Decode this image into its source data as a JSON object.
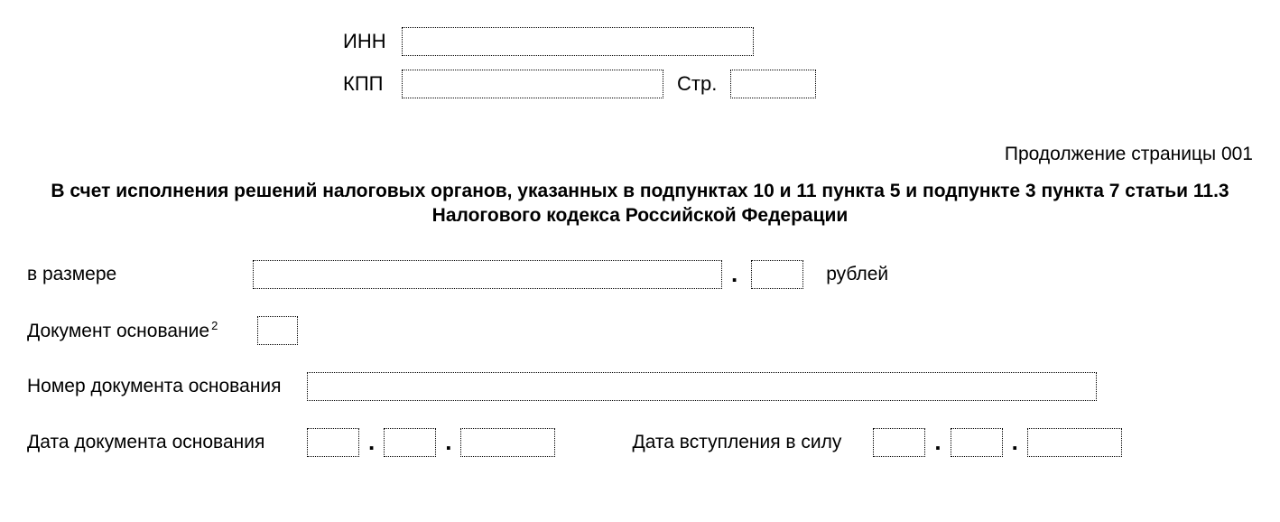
{
  "header": {
    "inn_label": "ИНН",
    "inn_value": "",
    "kpp_label": "КПП",
    "kpp_value": "",
    "page_label": "Стр.",
    "page_value": ""
  },
  "continuation": "Продолжение страницы 001",
  "title": "В счет исполнения решений налоговых органов, указанных в подпунктах 10 и 11 пункта 5 и подпункте 3 пункта 7 статьи 11.3 Налогового кодекса Российской Федерации",
  "amount": {
    "label": "в размере",
    "main_value": "",
    "decimal_value": "",
    "currency": "рублей"
  },
  "doc_basis": {
    "label": "Документ основание",
    "superscript": "2",
    "value": ""
  },
  "doc_number": {
    "label": "Номер документа основания",
    "value": ""
  },
  "doc_date": {
    "label": "Дата документа основания",
    "day": "",
    "month": "",
    "year": ""
  },
  "effect_date": {
    "label": "Дата вступления в силу",
    "day": "",
    "month": "",
    "year": ""
  }
}
